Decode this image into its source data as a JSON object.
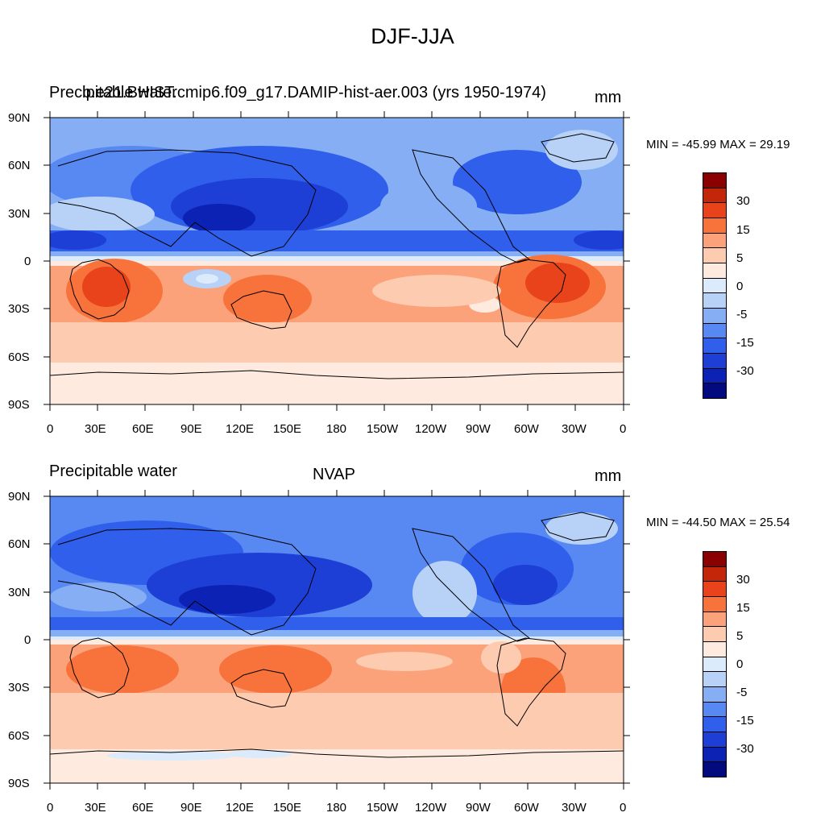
{
  "figure": {
    "title": "DJF-JJA"
  },
  "panels": [
    {
      "left_title": "Precipitable water",
      "center_title": "b.e21.BHIST.cmip6.f09_g17.DAMIP-hist-aer.003 (yrs 1950-1974)",
      "units": "mm",
      "minmax": "MIN = -45.99 MAX =  29.19"
    },
    {
      "left_title": "Precipitable water",
      "center_title": "NVAP",
      "units": "mm",
      "minmax": "MIN = -44.50 MAX =  25.54"
    }
  ],
  "axes": {
    "lat_labels": [
      "90N",
      "60N",
      "30N",
      "0",
      "30S",
      "60S",
      "90S"
    ],
    "lon_labels": [
      "0",
      "30E",
      "60E",
      "90E",
      "120E",
      "150E",
      "180",
      "150W",
      "120W",
      "90W",
      "60W",
      "30W",
      "0"
    ]
  },
  "colorbar": {
    "colors": [
      "#8b0000",
      "#c4260a",
      "#e8431b",
      "#f8733b",
      "#fba27a",
      "#fdcbb0",
      "#feeade",
      "#dcebfb",
      "#b7d1f7",
      "#86aef5",
      "#5888f1",
      "#2f5feb",
      "#1d3fd6",
      "#0b22b5",
      "#020a7e"
    ],
    "tick_labels": [
      "30",
      "15",
      "5",
      "0",
      "-5",
      "-15",
      "-30"
    ]
  },
  "palette": {
    "deep_blue": "#1d3fd6",
    "mid_blue": "#5888f1",
    "light_blue": "#b7d1f7",
    "pale_blue": "#dcebfb",
    "pale_orange": "#feeade",
    "light_orange": "#fdcbb0",
    "orange": "#fba27a",
    "red_orange": "#f8733b",
    "red": "#e8431b"
  }
}
